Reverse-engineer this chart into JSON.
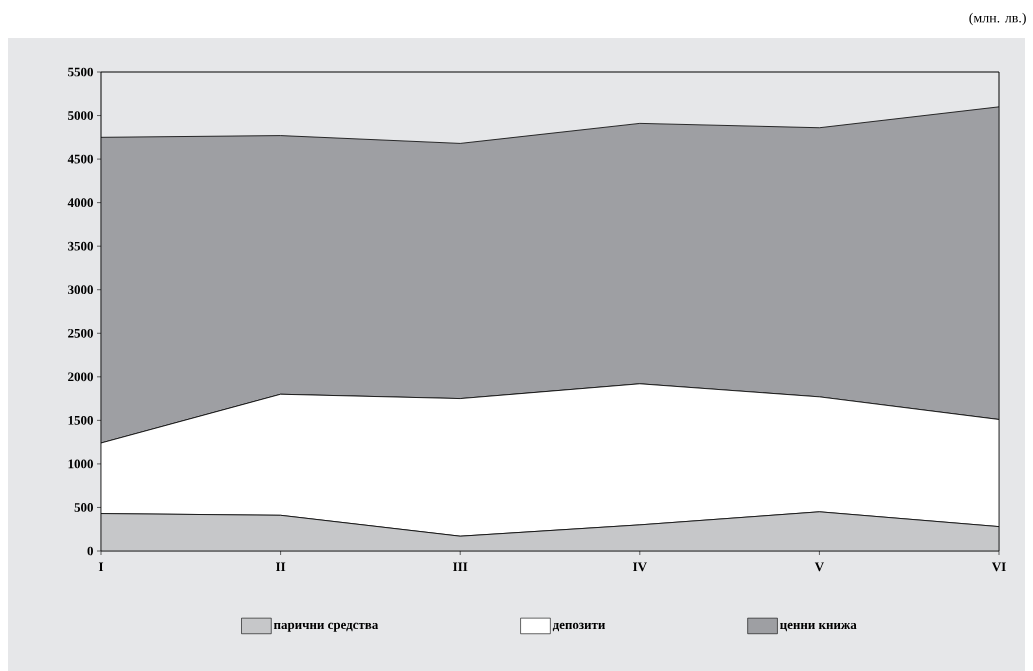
{
  "chart_data": {
    "type": "area",
    "stacked": true,
    "categories": [
      "I",
      "II",
      "III",
      "IV",
      "V",
      "VI"
    ],
    "series": [
      {
        "name": "парични средства",
        "color": "#c6c7c9",
        "values": [
          430,
          410,
          170,
          300,
          450,
          280
        ]
      },
      {
        "name": "депозити",
        "color": "#ffffff",
        "values": [
          810,
          1390,
          1580,
          1620,
          1320,
          1230
        ]
      },
      {
        "name": "ценни книжа",
        "color": "#9e9fa3",
        "values": [
          3510,
          2970,
          2930,
          2990,
          3090,
          3590
        ]
      }
    ],
    "ylim": [
      0,
      5500
    ],
    "yticks": [
      0,
      500,
      1000,
      1500,
      2000,
      2500,
      3000,
      3500,
      4000,
      4500,
      5000,
      5500
    ],
    "grid": false,
    "legend": "bottom",
    "marker": "none",
    "annotations": [
      "(млн. лв.)"
    ]
  }
}
